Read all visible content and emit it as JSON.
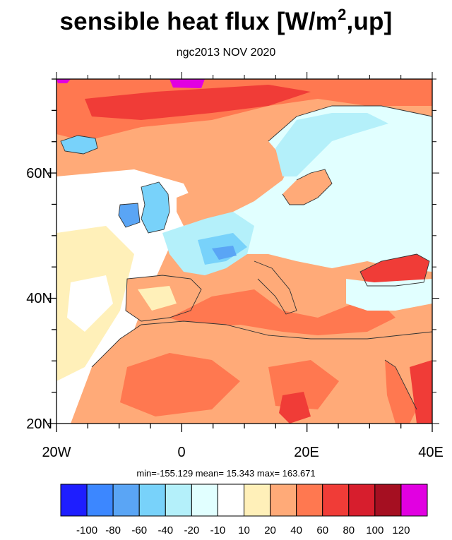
{
  "title": {
    "main": "sensible heat flux [W/m",
    "sup": "2",
    "tail": ",up]"
  },
  "subtitle": "ngc2013 NOV 2020",
  "axes": {
    "x_ticks": [
      "20W",
      "0",
      "20E",
      "40E"
    ],
    "y_ticks": [
      "60N",
      "40N",
      "20N"
    ]
  },
  "stats": {
    "text": "min=-155.129  mean=  15.343  max= 163.671",
    "min": -155.129,
    "mean": 15.343,
    "max": 163.671
  },
  "colorbar": {
    "colors": [
      "#1e1eff",
      "#3c87ff",
      "#5aa5f5",
      "#78d2fa",
      "#b4f0fa",
      "#e1ffff",
      "#ffffff",
      "#fff0b9",
      "#ffaa78",
      "#ff7850",
      "#f03c37",
      "#d71e2d",
      "#a50f21",
      "#e100e1"
    ],
    "labels": [
      "-100",
      "-80",
      "-60",
      "-40",
      "-20",
      "-10",
      "10",
      "20",
      "40",
      "60",
      "80",
      "100",
      "120"
    ]
  },
  "map": {
    "region": "Europe / North Africa",
    "lon_range": [
      -20,
      40
    ],
    "lat_range": [
      20,
      75
    ]
  }
}
